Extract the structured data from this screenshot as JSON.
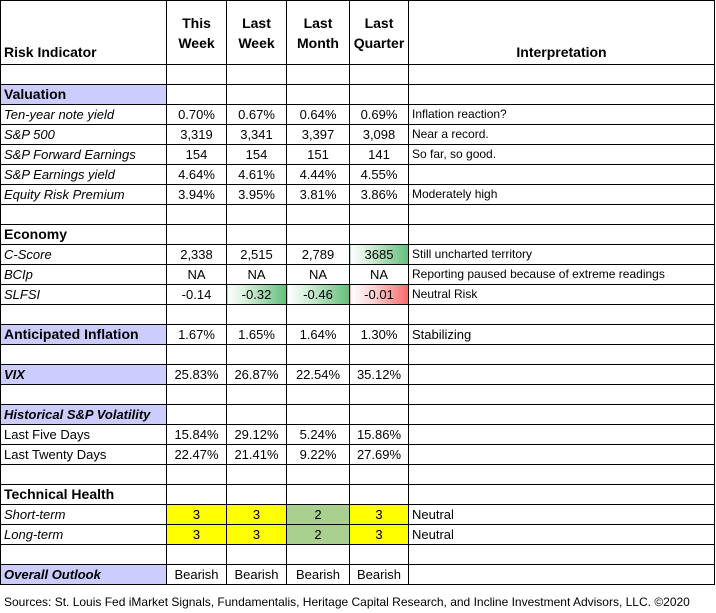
{
  "header": {
    "risk_indicator": "Risk Indicator",
    "this_week": [
      "This",
      "Week"
    ],
    "last_week": [
      "Last",
      "Week"
    ],
    "last_month": [
      "Last",
      "Month"
    ],
    "last_quarter": [
      "Last",
      "Quarter"
    ],
    "interpretation": "Interpretation"
  },
  "valuation": {
    "title": "Valuation",
    "rows": [
      {
        "label": "Ten-year note yield",
        "v": [
          "0.70%",
          "0.67%",
          "0.64%",
          "0.69%"
        ],
        "interp": "Inflation reaction?"
      },
      {
        "label": "S&P 500",
        "v": [
          "3,319",
          "3,341",
          "3,397",
          "3,098"
        ],
        "interp": "Near a record."
      },
      {
        "label": "S&P Forward Earnings",
        "v": [
          "154",
          "154",
          "151",
          "141"
        ],
        "interp": "So far, so good."
      },
      {
        "label": "S&P Earnings yield",
        "v": [
          "4.64%",
          "4.61%",
          "4.44%",
          "4.55%"
        ],
        "interp": ""
      },
      {
        "label": "Equity Risk Premium",
        "v": [
          "3.94%",
          "3.95%",
          "3.81%",
          "3.86%"
        ],
        "interp": "Moderately high"
      }
    ]
  },
  "economy": {
    "title": "Economy",
    "cscore": {
      "label": "C-Score",
      "v": [
        "2,338",
        "2,515",
        "2,789",
        "3685"
      ],
      "interp": "Still uncharted territory"
    },
    "bcip": {
      "label": "BCIp",
      "v": [
        "NA",
        "NA",
        "NA",
        "NA"
      ],
      "interp": "Reporting paused because of extreme readings"
    },
    "slfsi": {
      "label": "SLFSI",
      "v": [
        "-0.14",
        "-0.32",
        "-0.46",
        "-0.01"
      ],
      "interp": "Neutral Risk"
    }
  },
  "anticipated_inflation": {
    "label": "Anticipated Inflation",
    "v": [
      "1.67%",
      "1.65%",
      "1.64%",
      "1.30%"
    ],
    "interp": "Stabilizing"
  },
  "vix": {
    "label": "VIX",
    "v": [
      "25.83%",
      "26.87%",
      "22.54%",
      "35.12%"
    ]
  },
  "volatility": {
    "title": "Historical  S&P Volatility",
    "rows": [
      {
        "label": "Last Five Days",
        "v": [
          "15.84%",
          "29.12%",
          "5.24%",
          "15.86%"
        ]
      },
      {
        "label": "Last Twenty Days",
        "v": [
          "22.47%",
          "21.41%",
          "9.22%",
          "27.69%"
        ]
      }
    ]
  },
  "technical": {
    "title": "Technical Health",
    "rows": [
      {
        "label": "Short-term",
        "v": [
          "3",
          "3",
          "2",
          "3"
        ],
        "interp": "Neutral"
      },
      {
        "label": "Long-term",
        "v": [
          "3",
          "3",
          "2",
          "3"
        ],
        "interp": "Neutral"
      }
    ]
  },
  "outlook": {
    "label": "Overall Outlook",
    "v": [
      "Bearish",
      "Bearish",
      "Bearish",
      "Bearish"
    ]
  },
  "footer": "Sources: St. Louis Fed  iMarket Signals, Fundamentalis, Heritage Capital Research, and Incline Investment Advisors, LLC. ©2020",
  "colors": {
    "section_bg": "#ccccff",
    "yellow": "#ffff00",
    "green": "#a9d08e",
    "bar_green": "#63be7b",
    "bar_red": "#f8696b"
  }
}
